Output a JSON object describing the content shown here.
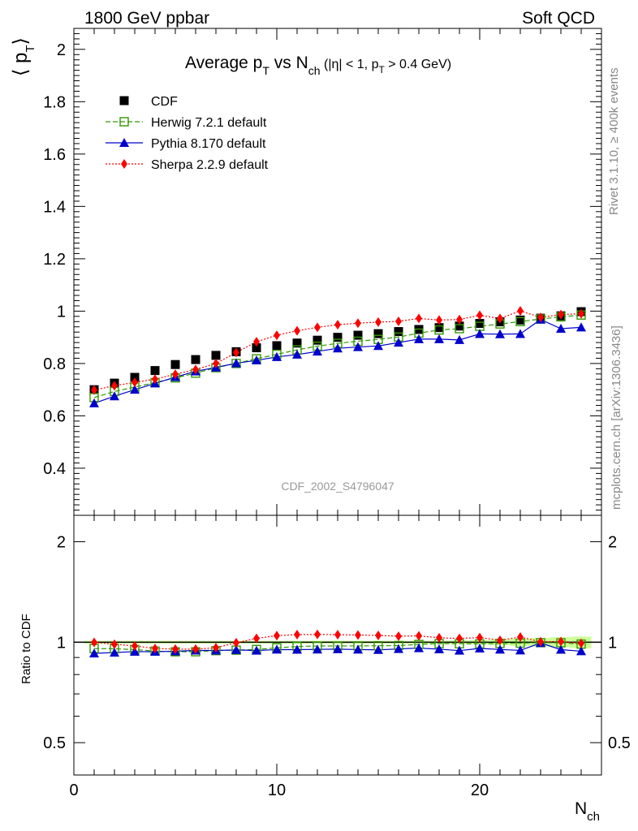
{
  "header": {
    "left": "1800 GeV ppbar",
    "right": "Soft QCD"
  },
  "side_labels": {
    "rivet": "Rivet 3.1.10, ≥ 400k events",
    "mcplots": "mcplots.cern.ch [arXiv:1306.3436]"
  },
  "chart_data": {
    "type": "scatter",
    "title": {
      "main": "Average p",
      "main_sub": "T",
      "vs": " vs N",
      "vs_sub": "ch",
      "cut_open": " (|η| < 1, p",
      "cut_sub": "T",
      "cut_close": " > 0.4 GeV)"
    },
    "analysis_id": "CDF_2002_S4796047",
    "ylabel": {
      "open": "⟨ p",
      "sub": "T",
      "close": "⟩"
    },
    "xlabel": {
      "main": "N",
      "sub": "ch"
    },
    "ratio_ylabel": "Ratio to CDF",
    "xlim": [
      0,
      26
    ],
    "ylim": [
      0.22,
      2.08
    ],
    "ratio_ylim": [
      0.4,
      2.4
    ],
    "x_ticks": [
      0,
      10,
      20
    ],
    "y_ticks": [
      0.4,
      0.6,
      0.8,
      1,
      1.2,
      1.4,
      1.6,
      1.8,
      2
    ],
    "y_tick_labels": [
      "0.4",
      "0.6",
      "0.8",
      "1",
      "1.2",
      "1.4",
      "1.6",
      "1.8",
      "2"
    ],
    "ratio_ticks": [
      0.5,
      1,
      2
    ],
    "ratio_tick_labels": [
      "0.5",
      "1",
      "2"
    ],
    "x": [
      1,
      2,
      3,
      4,
      5,
      6,
      7,
      8,
      9,
      10,
      11,
      12,
      13,
      14,
      15,
      16,
      17,
      18,
      19,
      20,
      21,
      22,
      23,
      24,
      25
    ],
    "series": [
      {
        "name": "CDF",
        "color": "#000000",
        "marker": "square",
        "line": "none",
        "values": [
          0.7,
          0.725,
          0.747,
          0.773,
          0.796,
          0.815,
          0.831,
          0.845,
          0.86,
          0.868,
          0.878,
          0.889,
          0.9,
          0.908,
          0.914,
          0.922,
          0.93,
          0.937,
          0.943,
          0.953,
          0.959,
          0.966,
          0.973,
          0.982,
          0.998
        ]
      },
      {
        "name": "Herwig 7.2.1 default",
        "color": "#339900",
        "marker": "open-square",
        "line": "dashed",
        "values": [
          0.67,
          0.693,
          0.71,
          0.727,
          0.745,
          0.763,
          0.784,
          0.8,
          0.818,
          0.835,
          0.852,
          0.866,
          0.877,
          0.885,
          0.892,
          0.901,
          0.916,
          0.928,
          0.933,
          0.942,
          0.951,
          0.96,
          0.97,
          0.978,
          0.985
        ]
      },
      {
        "name": "Pythia 8.170 default",
        "color": "#0000cc",
        "marker": "triangle",
        "line": "solid",
        "values": [
          0.648,
          0.675,
          0.7,
          0.724,
          0.748,
          0.77,
          0.785,
          0.801,
          0.812,
          0.825,
          0.834,
          0.846,
          0.858,
          0.863,
          0.867,
          0.88,
          0.893,
          0.893,
          0.89,
          0.913,
          0.912,
          0.913,
          0.968,
          0.933,
          0.938
        ]
      },
      {
        "name": "Sherpa 2.2.9 default",
        "color": "#ff0000",
        "marker": "diamond",
        "line": "dotted",
        "values": [
          0.699,
          0.715,
          0.728,
          0.74,
          0.759,
          0.777,
          0.8,
          0.842,
          0.883,
          0.908,
          0.925,
          0.938,
          0.948,
          0.954,
          0.958,
          0.961,
          0.972,
          0.966,
          0.968,
          0.984,
          0.972,
          1.001,
          0.976,
          0.987,
          0.99
        ]
      }
    ],
    "ratio_band_color": "#ccff99",
    "ratio_band_halfwidth": [
      0.01,
      0.01,
      0.01,
      0.01,
      0.01,
      0.01,
      0.01,
      0.01,
      0.01,
      0.01,
      0.01,
      0.01,
      0.01,
      0.01,
      0.01,
      0.01,
      0.01,
      0.01,
      0.012,
      0.015,
      0.02,
      0.025,
      0.03,
      0.035,
      0.04
    ]
  }
}
